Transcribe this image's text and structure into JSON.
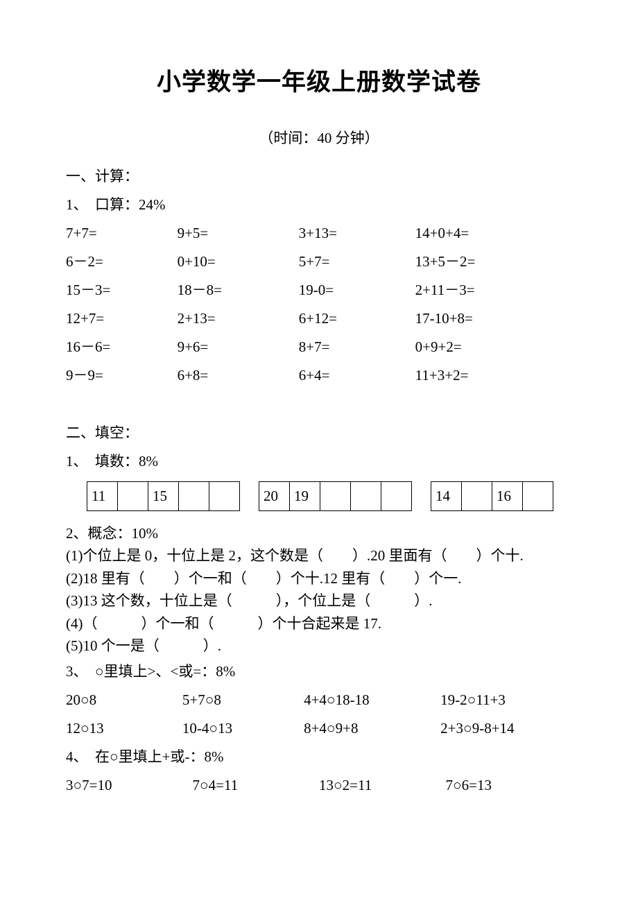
{
  "title": "小学数学一年级上册数学试卷",
  "subtitle": "（时间：40 分钟）",
  "s1": {
    "heading": "一、计算：",
    "sub": "1、　口算：24%",
    "rows": [
      [
        "7+7=",
        "9+5=",
        "3+13=",
        "14+0+4="
      ],
      [
        "6－2=",
        "0+10=",
        "5+7=",
        "13+5－2="
      ],
      [
        "15－3=",
        "18－8=",
        "19-0=",
        "  2+11－3="
      ],
      [
        "12+7=",
        "2+13=",
        "6+12=",
        "  17-10+8="
      ],
      [
        "16－6=",
        "9+6=",
        "8+7=",
        "   0+9+2="
      ],
      [
        "9－9=",
        "6+8=",
        "6+4=",
        "   11+3+2="
      ]
    ]
  },
  "s2": {
    "heading": "二、填空：",
    "sub": "1、　填数：8%",
    "cells": [
      "11",
      "",
      "15",
      "",
      "",
      "",
      "20",
      "19",
      "",
      "",
      "",
      "",
      "14",
      "",
      "16",
      ""
    ]
  },
  "p2": {
    "heading": "2、概念：10%",
    "lines": [
      "(1)个位上是 0，十位上是 2，这个数是（　　）.20 里面有（　　）个十.",
      "(2)18 里有（　　）个一和（　　）个十.12 里有（　　）个一.",
      "(3)13 这个数，十位上是（　　　），个位上是（　　　）.",
      "(4)（　　　）个一和（　　　）个十合起来是 17.",
      "(5)10 个一是（　　　）."
    ]
  },
  "p3": {
    "heading": "3、　○里填上>、<或=：8%",
    "rows": [
      [
        "20○8",
        "5+7○8",
        "4+4○18-18",
        "19-2○11+3"
      ],
      [
        "12○13",
        "10-4○13",
        "8+4○9+8",
        "2+3○9-8+14"
      ]
    ]
  },
  "p4": {
    "heading": "4、　在○里填上+或-：8%",
    "row": [
      "3○7=10",
      "7○4=11",
      "13○2=11",
      "7○6=13"
    ]
  }
}
